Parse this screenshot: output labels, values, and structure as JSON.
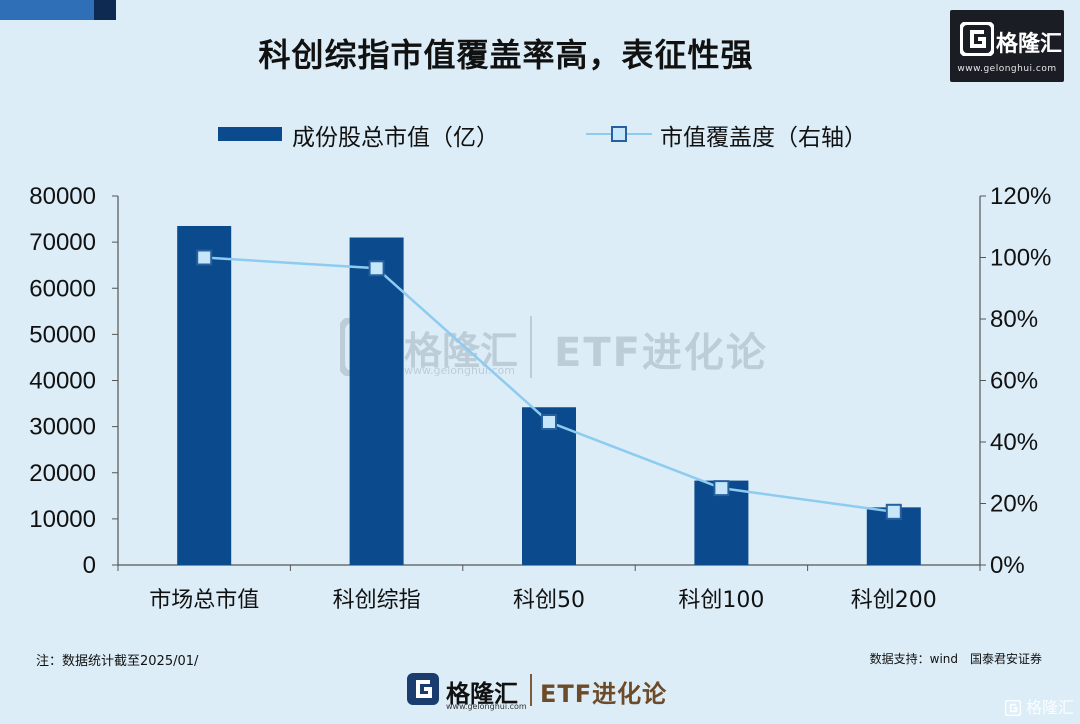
{
  "title": "科创综指市值覆盖率高，表征性强",
  "brand": {
    "name": "格隆汇",
    "url": "www.gelonghui.com",
    "slogan": "ETF进化论"
  },
  "legend": {
    "bar_label": "成份股总市值（亿）",
    "line_label": "市值覆盖度（右轴）"
  },
  "note": "注：数据统计截至2025/01/",
  "source": "数据支持：wind　国泰君安证券",
  "colors": {
    "bar": "#0b4a8c",
    "line": "#8ecbf0",
    "marker_fill": "#c6e6fa",
    "marker_edge": "#27609e",
    "background": "#dcedf7"
  },
  "icons": {
    "brand_logo": "gelonghui-g-logo-icon"
  },
  "chart_data": {
    "type": "bar",
    "categories": [
      "市场总市值",
      "科创综指",
      "科创50",
      "科创100",
      "科创200"
    ],
    "series": [
      {
        "name": "成份股总市值（亿）",
        "type": "bar",
        "axis": "left",
        "values": [
          73500,
          71000,
          34200,
          18300,
          12500
        ]
      },
      {
        "name": "市值覆盖度（右轴）",
        "type": "line",
        "axis": "right",
        "values": [
          100,
          96.5,
          46.5,
          25,
          17.3
        ]
      }
    ],
    "y_left": {
      "ylim": [
        0,
        80000
      ],
      "ticks": [
        0,
        10000,
        20000,
        30000,
        40000,
        50000,
        60000,
        70000,
        80000
      ]
    },
    "y_right": {
      "ylim": [
        0,
        120
      ],
      "ticks": [
        "0%",
        "20%",
        "40%",
        "60%",
        "80%",
        "100%",
        "120%"
      ]
    },
    "grid": false,
    "legend_position": "top"
  }
}
